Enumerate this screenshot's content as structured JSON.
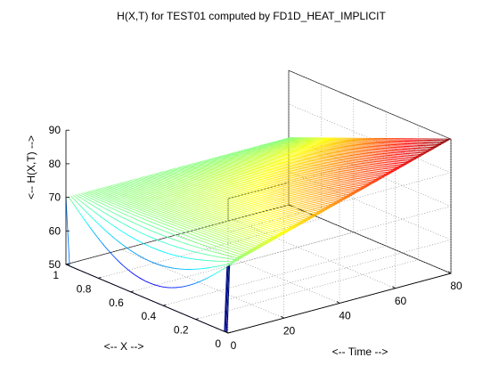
{
  "chart_data": {
    "type": "surface",
    "title": "H(X,T) for TEST01 computed by FD1D_HEAT_IMPLICIT",
    "xlabel": "<-- X -->",
    "ylabel": "<-- Time -->",
    "zlabel": "<--  H(X,T) -->",
    "x_ticks": [
      "0",
      "0.2",
      "0.4",
      "0.6",
      "0.8",
      "1"
    ],
    "time_ticks": [
      "0",
      "20",
      "40",
      "60",
      "80"
    ],
    "z_ticks": [
      "50",
      "60",
      "70",
      "80",
      "90"
    ],
    "xlim": [
      0,
      1
    ],
    "tlim": [
      0,
      80
    ],
    "zlim": [
      50,
      90
    ],
    "grid": true,
    "colormap": "jet",
    "surface_values": [
      {
        "x": 0,
        "t": 0,
        "h": 70
      },
      {
        "x": 0,
        "t": 80,
        "h": 90
      },
      {
        "x": 1,
        "t": 0,
        "h": 70
      },
      {
        "x": 1,
        "t": 80,
        "h": 70
      },
      {
        "x": 0.5,
        "t": 0,
        "h": 50
      },
      {
        "x": 0.5,
        "t": 80,
        "h": 80
      }
    ],
    "boundary_left": {
      "x": 0,
      "t_start": 0,
      "t_end": 80,
      "h_start": 70,
      "h_end": 90
    },
    "boundary_right": {
      "x": 1,
      "h": 70
    },
    "initial_interior_h": 50
  }
}
